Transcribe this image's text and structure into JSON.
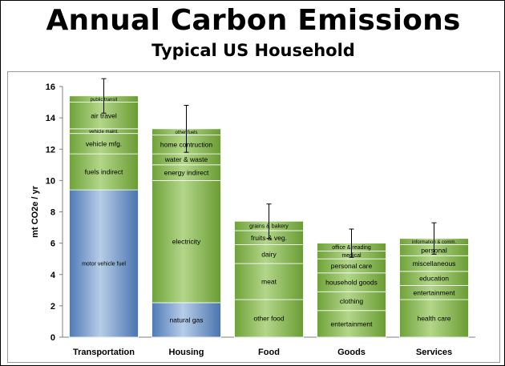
{
  "title": "Annual Carbon Emissions",
  "subtitle": "Typical US Household",
  "chart_data": {
    "type": "bar",
    "stacked": true,
    "title": "Annual Carbon Emissions",
    "subtitle": "Typical US Household",
    "xlabel": "",
    "ylabel": "mt CO2e / yr",
    "ylim": [
      0,
      16
    ],
    "yticks": [
      0,
      2,
      4,
      6,
      8,
      10,
      12,
      14,
      16
    ],
    "grid": false,
    "legend": "none",
    "colors": {
      "blue": "#5b87c0",
      "green": "#7fb24a"
    },
    "categories": [
      {
        "name": "Transportation",
        "total": 15.4,
        "error_top": 16.5,
        "error_bottom": 14.3,
        "segments": [
          {
            "label": "motor vehicle fuel",
            "value": 9.4,
            "color": "blue"
          },
          {
            "label": "fuels indirect",
            "value": 2.3,
            "color": "green"
          },
          {
            "label": "vehicle mfg.",
            "value": 1.3,
            "color": "green"
          },
          {
            "label": "vehicle maint.",
            "value": 0.3,
            "color": "green"
          },
          {
            "label": "air travel",
            "value": 1.7,
            "color": "green"
          },
          {
            "label": "public transit",
            "value": 0.4,
            "color": "green"
          }
        ]
      },
      {
        "name": "Housing",
        "total": 13.3,
        "error_top": 14.8,
        "error_bottom": 11.8,
        "segments": [
          {
            "label": "natural gas",
            "value": 2.2,
            "color": "blue"
          },
          {
            "label": "electricity",
            "value": 7.8,
            "color": "green"
          },
          {
            "label": "energy indirect",
            "value": 1.0,
            "color": "green"
          },
          {
            "label": "water & waste",
            "value": 0.7,
            "color": "green"
          },
          {
            "label": "home contruction",
            "value": 1.2,
            "color": "green"
          },
          {
            "label": "other fuels",
            "value": 0.4,
            "color": "green"
          }
        ]
      },
      {
        "name": "Food",
        "total": 7.4,
        "error_top": 8.5,
        "error_bottom": 6.3,
        "segments": [
          {
            "label": "other food",
            "value": 2.4,
            "color": "green"
          },
          {
            "label": "meat",
            "value": 2.3,
            "color": "green"
          },
          {
            "label": "dairy",
            "value": 1.2,
            "color": "green"
          },
          {
            "label": "fruits & veg.",
            "value": 0.9,
            "color": "green"
          },
          {
            "label": "grains & bakery",
            "value": 0.6,
            "color": "green"
          }
        ]
      },
      {
        "name": "Goods",
        "total": 6.0,
        "error_top": 6.9,
        "error_bottom": 5.1,
        "segments": [
          {
            "label": "entertainment",
            "value": 1.7,
            "color": "green"
          },
          {
            "label": "clothing",
            "value": 1.2,
            "color": "green"
          },
          {
            "label": "household goods",
            "value": 1.2,
            "color": "green"
          },
          {
            "label": "personal care",
            "value": 0.9,
            "color": "green"
          },
          {
            "label": "medical",
            "value": 0.5,
            "color": "green"
          },
          {
            "label": "office & reading",
            "value": 0.5,
            "color": "green"
          }
        ]
      },
      {
        "name": "Services",
        "total": 6.3,
        "error_top": 7.3,
        "error_bottom": 5.3,
        "segments": [
          {
            "label": "health care",
            "value": 2.4,
            "color": "green"
          },
          {
            "label": "entertainment",
            "value": 0.9,
            "color": "green"
          },
          {
            "label": "education",
            "value": 0.9,
            "color": "green"
          },
          {
            "label": "miscellaneous",
            "value": 1.0,
            "color": "green"
          },
          {
            "label": "personal",
            "value": 0.7,
            "color": "green"
          },
          {
            "label": "information & comm.",
            "value": 0.4,
            "color": "green"
          }
        ]
      }
    ]
  }
}
